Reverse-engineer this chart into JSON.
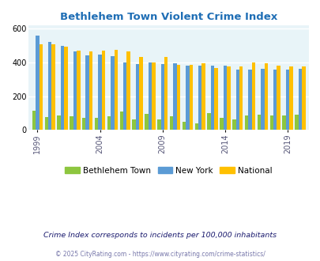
{
  "title": "Bethlehem Town Violent Crime Index",
  "years": [
    1999,
    2000,
    2001,
    2002,
    2003,
    2004,
    2005,
    2006,
    2007,
    2008,
    2009,
    2010,
    2011,
    2012,
    2013,
    2014,
    2015,
    2016,
    2017,
    2018,
    2019,
    2020
  ],
  "bethlehem": [
    113,
    75,
    85,
    80,
    70,
    70,
    80,
    107,
    60,
    97,
    63,
    80,
    50,
    40,
    100,
    70,
    60,
    85,
    90,
    85,
    85,
    90
  ],
  "new_york": [
    560,
    520,
    500,
    465,
    440,
    445,
    435,
    400,
    388,
    400,
    390,
    393,
    382,
    382,
    380,
    380,
    355,
    358,
    360,
    355,
    355,
    360
  ],
  "national": [
    505,
    505,
    495,
    470,
    465,
    472,
    475,
    465,
    430,
    400,
    430,
    385,
    386,
    395,
    365,
    375,
    375,
    400,
    395,
    380,
    375,
    375
  ],
  "bethlehem_color": "#8dc63f",
  "new_york_color": "#5b9bd5",
  "national_color": "#ffc000",
  "bg_color": "#e8f4f8",
  "grid_color": "#ffffff",
  "title_color": "#1f6eb5",
  "legend_labels": [
    "Bethlehem Town",
    "New York",
    "National"
  ],
  "footnote1": "Crime Index corresponds to incidents per 100,000 inhabitants",
  "footnote2": "© 2025 CityRating.com - https://www.cityrating.com/crime-statistics/",
  "footnote_color": "#555555",
  "footnote1_color": "#1a1a6e",
  "ylim": [
    0,
    620
  ],
  "yticks": [
    0,
    200,
    400,
    600
  ],
  "xtick_years": [
    1999,
    2004,
    2009,
    2014,
    2019
  ],
  "bar_width": 0.28
}
